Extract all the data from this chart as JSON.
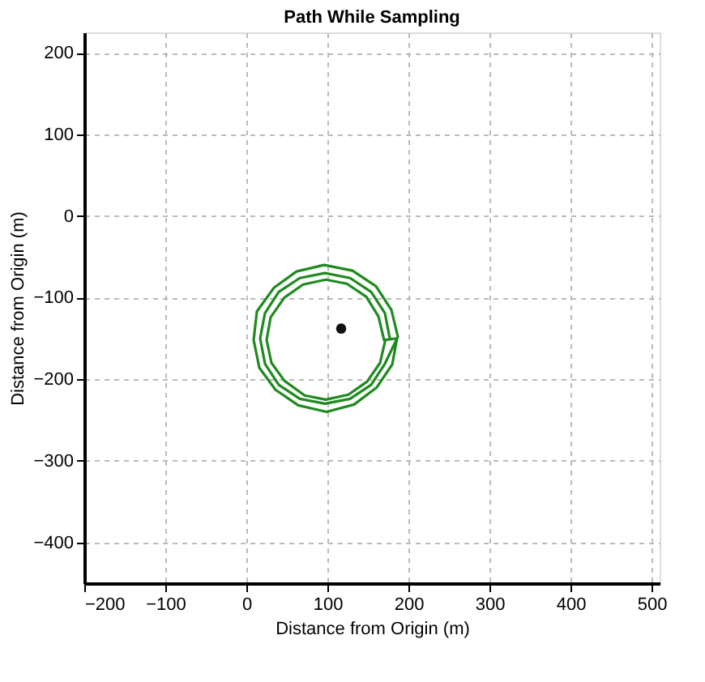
{
  "chart_data": {
    "type": "line",
    "title": "Path While Sampling",
    "xlabel": "Distance from Origin (m)",
    "ylabel": "Distance from Origin (m)",
    "xlim": [
      -200,
      510
    ],
    "ylim": [
      -450,
      225
    ],
    "xticks": [
      -200,
      -100,
      0,
      100,
      200,
      300,
      400,
      500
    ],
    "yticks": [
      -400,
      -300,
      -200,
      -100,
      0,
      100,
      200
    ],
    "grid": true,
    "line_style": "solid",
    "series": [
      {
        "color": "#1f8a1f",
        "marker": "none",
        "x": [
          177,
          171,
          154,
          128,
          97,
          66,
          40,
          23,
          17,
          23,
          40,
          66,
          97,
          128,
          154,
          171,
          187,
          179,
          160,
          131,
          96,
          62,
          34,
          13,
          9,
          16,
          36,
          64,
          99,
          133,
          161,
          180,
          186,
          170,
          163,
          148,
          124,
          98,
          70,
          47,
          30,
          25,
          31,
          47,
          72,
          98,
          126,
          149,
          165,
          172
        ],
        "values": [
          -150,
          -119,
          -93,
          -76,
          -70,
          -76,
          -93,
          -119,
          -150,
          -181,
          -207,
          -224,
          -230,
          -224,
          -207,
          -181,
          -148,
          -115,
          -86,
          -67,
          -60,
          -68,
          -88,
          -117,
          -152,
          -186,
          -213,
          -232,
          -240,
          -231,
          -210,
          -182,
          -150,
          -152,
          -123,
          -99,
          -83,
          -78,
          -84,
          -100,
          -124,
          -152,
          -180,
          -202,
          -220,
          -225,
          -219,
          -203,
          -180,
          -150
        ]
      },
      {
        "type": "scatter",
        "color": "#111111",
        "marker": "circle",
        "x": [
          117
        ],
        "values": [
          -138
        ]
      }
    ]
  }
}
